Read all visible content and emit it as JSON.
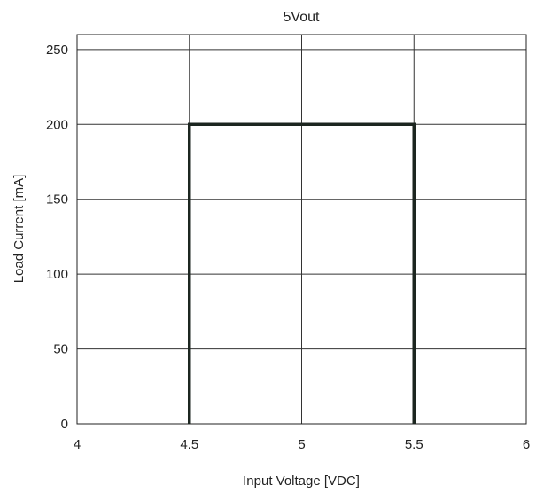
{
  "chart_data": {
    "type": "line",
    "title": "5Vout",
    "xlabel": "Input Voltage [VDC]",
    "ylabel": "Load Current [mA]",
    "xlim": [
      4,
      6
    ],
    "ylim": [
      0,
      260
    ],
    "x_ticks": [
      4,
      4.5,
      5,
      5.5,
      6
    ],
    "x_tick_labels": [
      "4",
      "4.5",
      "5",
      "5.5",
      "6"
    ],
    "y_ticks": [
      0,
      50,
      100,
      150,
      200,
      250
    ],
    "y_tick_labels": [
      "0",
      "50",
      "100",
      "150",
      "200",
      "250"
    ],
    "grid": true,
    "series": [
      {
        "x": [
          4.5,
          4.5,
          5.5,
          5.5
        ],
        "y": [
          0,
          200,
          200,
          0
        ],
        "color": "#1c2620"
      }
    ]
  }
}
